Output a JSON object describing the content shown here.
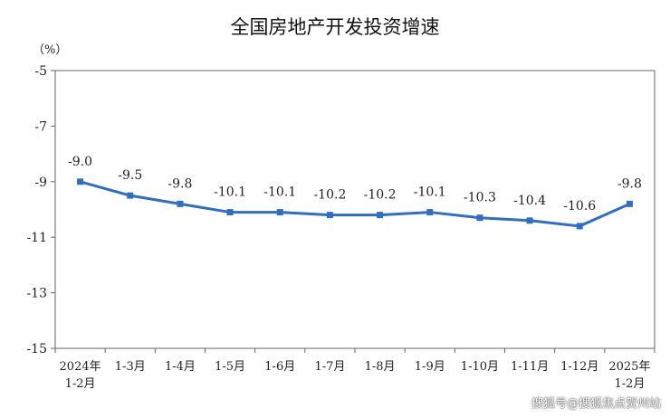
{
  "chart_data": {
    "type": "line",
    "title": "全国房地产开发投资增速",
    "unit_label": "（%）",
    "categories": [
      [
        "2024年",
        "1-2月"
      ],
      [
        "1-3月"
      ],
      [
        "1-4月"
      ],
      [
        "1-5月"
      ],
      [
        "1-6月"
      ],
      [
        "1-7月"
      ],
      [
        "1-8月"
      ],
      [
        "1-9月"
      ],
      [
        "1-10月"
      ],
      [
        "1-11月"
      ],
      [
        "1-12月"
      ],
      [
        "2025年",
        "1-2月"
      ]
    ],
    "values": [
      -9.0,
      -9.5,
      -9.8,
      -10.1,
      -10.1,
      -10.2,
      -10.2,
      -10.1,
      -10.3,
      -10.4,
      -10.6,
      -9.8
    ],
    "data_labels": [
      "-9.0",
      "-9.5",
      "-9.8",
      "-10.1",
      "-10.1",
      "-10.2",
      "-10.2",
      "-10.1",
      "-10.3",
      "-10.4",
      "-10.6",
      "-9.8"
    ],
    "ylim": [
      -15,
      -5
    ],
    "yticks": [
      -5,
      -7,
      -9,
      -11,
      -13,
      -15
    ],
    "grid": false,
    "line_color": "#2e6fc4"
  },
  "watermark": "搜狐号@搜狐焦点贺州站"
}
